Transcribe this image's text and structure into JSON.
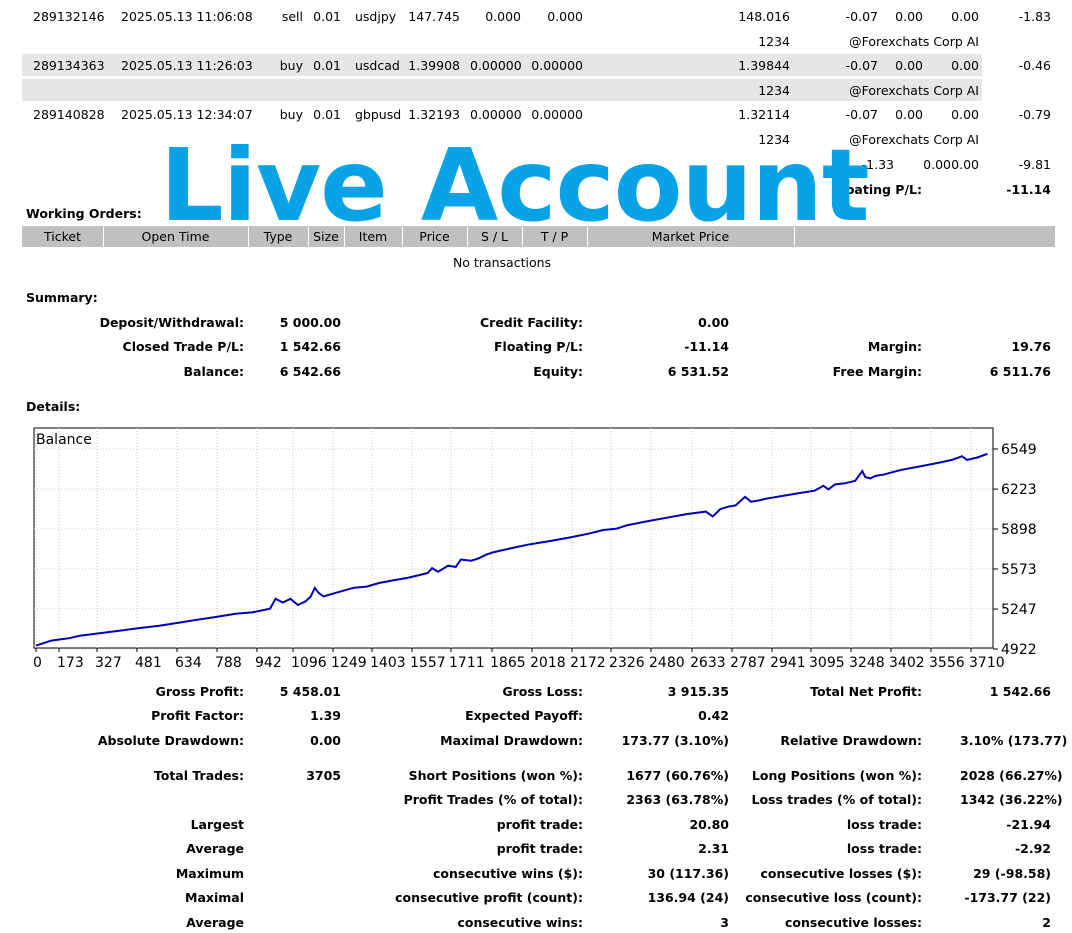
{
  "trades": [
    {
      "ticket": "289132146",
      "time": "2025.05.13 11:06:08",
      "type": "sell",
      "size": "0.01",
      "item": "usdjpy",
      "price": "147.745",
      "sl": "0.000",
      "tp": "0.000",
      "market": "148.016",
      "commission": "-0.07",
      "taxes": "0.00",
      "swap": "0.00",
      "profit": "-1.83",
      "magic": "1234",
      "comment": "@Forexchats Corp AI"
    },
    {
      "ticket": "289134363",
      "time": "2025.05.13 11:26:03",
      "type": "buy",
      "size": "0.01",
      "item": "usdcad",
      "price": "1.39908",
      "sl": "0.00000",
      "tp": "0.00000",
      "market": "1.39844",
      "commission": "-0.07",
      "taxes": "0.00",
      "swap": "0.00",
      "profit": "-0.46",
      "magic": "1234",
      "comment": "@Forexchats Corp AI"
    },
    {
      "ticket": "289140828",
      "time": "2025.05.13 12:34:07",
      "type": "buy",
      "size": "0.01",
      "item": "gbpusd",
      "price": "1.32193",
      "sl": "0.00000",
      "tp": "0.00000",
      "market": "1.32114",
      "commission": "-0.07",
      "taxes": "0.00",
      "swap": "0.00",
      "profit": "-0.79",
      "magic": "1234",
      "comment": "@Forexchats Corp AI"
    }
  ],
  "totals": {
    "commission": "-1.33",
    "taxes": "0.00",
    "swap": "0.00",
    "profit": "-9.81"
  },
  "floating": {
    "label": "Floating P/L:",
    "value": "-11.14"
  },
  "watermark": "Live Account",
  "working_orders": {
    "title": "Working Orders:",
    "headers": [
      "Ticket",
      "Open Time",
      "Type",
      "Size",
      "Item",
      "Price",
      "S / L",
      "T / P",
      "Market Price"
    ],
    "empty": "No transactions"
  },
  "summary": {
    "title": "Summary:",
    "rows": [
      [
        [
          "Deposit/Withdrawal:",
          "5 000.00"
        ],
        [
          "Credit Facility:",
          "0.00"
        ],
        [
          "",
          ""
        ]
      ],
      [
        [
          "Closed Trade P/L:",
          "1 542.66"
        ],
        [
          "Floating P/L:",
          "-11.14"
        ],
        [
          "Margin:",
          "19.76"
        ]
      ],
      [
        [
          "Balance:",
          "6 542.66"
        ],
        [
          "Equity:",
          "6 531.52"
        ],
        [
          "Free Margin:",
          "6 511.76"
        ]
      ]
    ]
  },
  "details": {
    "title": "Details:"
  },
  "chart_data": {
    "type": "line",
    "title": "Balance",
    "xlabel": "",
    "ylabel": "",
    "x_ticks": [
      "0",
      "173",
      "327",
      "481",
      "634",
      "788",
      "942",
      "1096",
      "1249",
      "1403",
      "1557",
      "1711",
      "1865",
      "2018",
      "2172",
      "2326",
      "2480",
      "2633",
      "2787",
      "2941",
      "3095",
      "3248",
      "3402",
      "3556",
      "3710"
    ],
    "y_ticks": [
      "6549",
      "6223",
      "5898",
      "5573",
      "5247",
      "4922"
    ],
    "xlim": [
      0,
      3750
    ],
    "ylim": [
      4922,
      6549
    ],
    "grid": true,
    "color": "#0000b4",
    "series": [
      {
        "x": [
          0,
          60,
          130,
          173,
          250,
          327,
          400,
          481,
          560,
          634,
          700,
          788,
          850,
          920,
          942,
          970,
          1000,
          1030,
          1060,
          1080,
          1096,
          1110,
          1130,
          1180,
          1249,
          1300,
          1350,
          1403,
          1460,
          1500,
          1540,
          1557,
          1580,
          1620,
          1650,
          1670,
          1711,
          1740,
          1770,
          1800,
          1865,
          1930,
          2018,
          2100,
          2172,
          2230,
          2280,
          2326,
          2400,
          2480,
          2560,
          2633,
          2660,
          2690,
          2720,
          2750,
          2787,
          2810,
          2840,
          2870,
          2941,
          3000,
          3060,
          3095,
          3115,
          3140,
          3180,
          3220,
          3248,
          3260,
          3280,
          3300,
          3330,
          3402,
          3480,
          3556,
          3600,
          3640,
          3660,
          3700,
          3740
        ],
        "y": [
          4950,
          4990,
          5010,
          5030,
          5050,
          5070,
          5090,
          5110,
          5135,
          5160,
          5180,
          5210,
          5220,
          5250,
          5330,
          5300,
          5330,
          5280,
          5310,
          5350,
          5420,
          5380,
          5350,
          5380,
          5420,
          5430,
          5460,
          5480,
          5500,
          5520,
          5540,
          5580,
          5550,
          5600,
          5590,
          5650,
          5640,
          5660,
          5690,
          5710,
          5740,
          5770,
          5800,
          5830,
          5860,
          5890,
          5900,
          5930,
          5960,
          5990,
          6020,
          6040,
          6000,
          6060,
          6080,
          6090,
          6160,
          6120,
          6130,
          6145,
          6170,
          6190,
          6210,
          6250,
          6220,
          6260,
          6270,
          6290,
          6370,
          6320,
          6310,
          6330,
          6340,
          6380,
          6410,
          6440,
          6460,
          6490,
          6460,
          6480,
          6510
        ]
      }
    ]
  },
  "stats": {
    "rows": [
      {
        "y": 691,
        "cells": [
          [
            "Gross Profit:",
            "5 458.01"
          ],
          [
            "Gross Loss:",
            "3 915.35"
          ],
          [
            "Total Net Profit:",
            "1 542.66"
          ]
        ]
      },
      {
        "y": 715,
        "cells": [
          [
            "Profit Factor:",
            "1.39"
          ],
          [
            "Expected Payoff:",
            "0.42"
          ],
          [
            "",
            ""
          ]
        ]
      },
      {
        "y": 740,
        "cells": [
          [
            "Absolute Drawdown:",
            "0.00"
          ],
          [
            "Maximal Drawdown:",
            "173.77 (3.10%)"
          ],
          [
            "Relative Drawdown:",
            "3.10% (173.77)"
          ]
        ]
      },
      {
        "y": 775,
        "cells": [
          [
            "Total Trades:",
            "3705"
          ],
          [
            "Short Positions (won %):",
            "1677 (60.76%)"
          ],
          [
            "Long Positions (won %):",
            "2028 (66.27%)"
          ]
        ]
      },
      {
        "y": 799,
        "cells": [
          [
            "",
            ""
          ],
          [
            "Profit Trades (% of total):",
            "2363 (63.78%)"
          ],
          [
            "Loss trades (% of total):",
            "1342 (36.22%)"
          ]
        ]
      },
      {
        "y": 824,
        "cells": [
          [
            "Largest",
            ""
          ],
          [
            "profit trade:",
            "20.80"
          ],
          [
            "loss trade:",
            "-21.94"
          ]
        ]
      },
      {
        "y": 848,
        "cells": [
          [
            "Average",
            ""
          ],
          [
            "profit trade:",
            "2.31"
          ],
          [
            "loss trade:",
            "-2.92"
          ]
        ]
      },
      {
        "y": 873,
        "cells": [
          [
            "Maximum",
            ""
          ],
          [
            "consecutive wins ($):",
            "30 (117.36)"
          ],
          [
            "consecutive losses ($):",
            "29 (-98.58)"
          ]
        ]
      },
      {
        "y": 897,
        "cells": [
          [
            "Maximal",
            ""
          ],
          [
            "consecutive profit (count):",
            "136.94 (24)"
          ],
          [
            "consecutive loss (count):",
            "-173.77 (22)"
          ]
        ]
      },
      {
        "y": 922,
        "cells": [
          [
            "Average",
            ""
          ],
          [
            "consecutive wins:",
            "3"
          ],
          [
            "consecutive losses:",
            "2"
          ]
        ]
      }
    ]
  }
}
